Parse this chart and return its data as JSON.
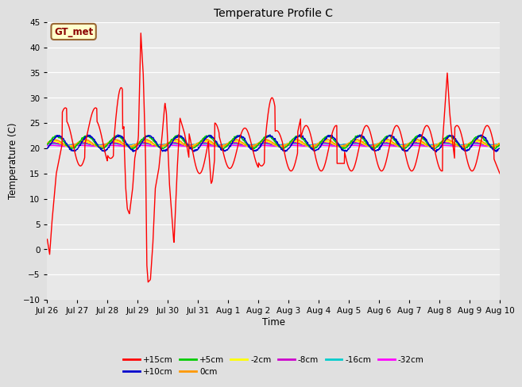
{
  "title": "Temperature Profile C",
  "xlabel": "Time",
  "ylabel": "Temperature (C)",
  "ylim": [
    -10,
    45
  ],
  "yticks": [
    -10,
    -5,
    0,
    5,
    10,
    15,
    20,
    25,
    30,
    35,
    40,
    45
  ],
  "fig_bg": "#e0e0e0",
  "plot_bg": "#e8e8e8",
  "legend_label": "GT_met",
  "legend_bg": "#ffffcc",
  "legend_border": "#996633",
  "series_colors": {
    "+15cm": "#ff0000",
    "+10cm": "#0000cc",
    "+5cm": "#00cc00",
    "0cm": "#ff9900",
    "-2cm": "#ffff00",
    "-8cm": "#cc00cc",
    "-16cm": "#00cccc",
    "-32cm": "#ff00ff"
  },
  "xtick_labels": [
    "Jul 26",
    "Jul 27",
    "Jul 28",
    "Jul 29",
    "Jul 30",
    "Jul 31",
    "Aug 1",
    "Aug 2",
    "Aug 3",
    "Aug 4",
    "Aug 5",
    "Aug 6",
    "Aug 7",
    "Aug 8",
    "Aug 9",
    "Aug 10"
  ]
}
